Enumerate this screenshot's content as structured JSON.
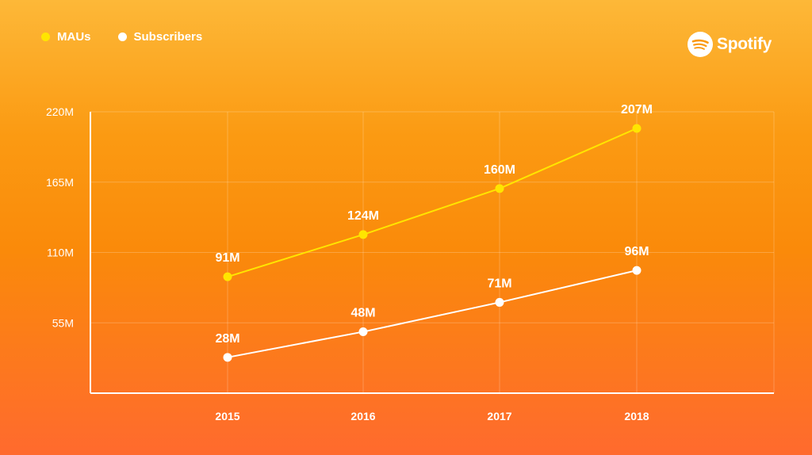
{
  "brand": {
    "name": "Spotify"
  },
  "colors": {
    "maus": "#FFE500",
    "subscribers": "#FFFFFF",
    "axis": "#FFFFFF",
    "grid": "rgba(255,255,255,0.22)"
  },
  "chart_data": {
    "type": "line",
    "categories": [
      "2015",
      "2016",
      "2017",
      "2018"
    ],
    "series": [
      {
        "name": "MAUs",
        "values": [
          91,
          124,
          160,
          207
        ],
        "labels": [
          "91M",
          "124M",
          "160M",
          "207M"
        ],
        "color": "#FFE500"
      },
      {
        "name": "Subscribers",
        "values": [
          28,
          48,
          71,
          96
        ],
        "labels": [
          "28M",
          "48M",
          "71M",
          "96M"
        ],
        "color": "#FFFFFF"
      }
    ],
    "yticks": [
      55,
      110,
      165,
      220
    ],
    "ytick_labels": [
      "55M",
      "110M",
      "165M",
      "220M"
    ],
    "ylim": [
      0,
      220
    ],
    "legend_position": "top-left",
    "grid": true
  }
}
